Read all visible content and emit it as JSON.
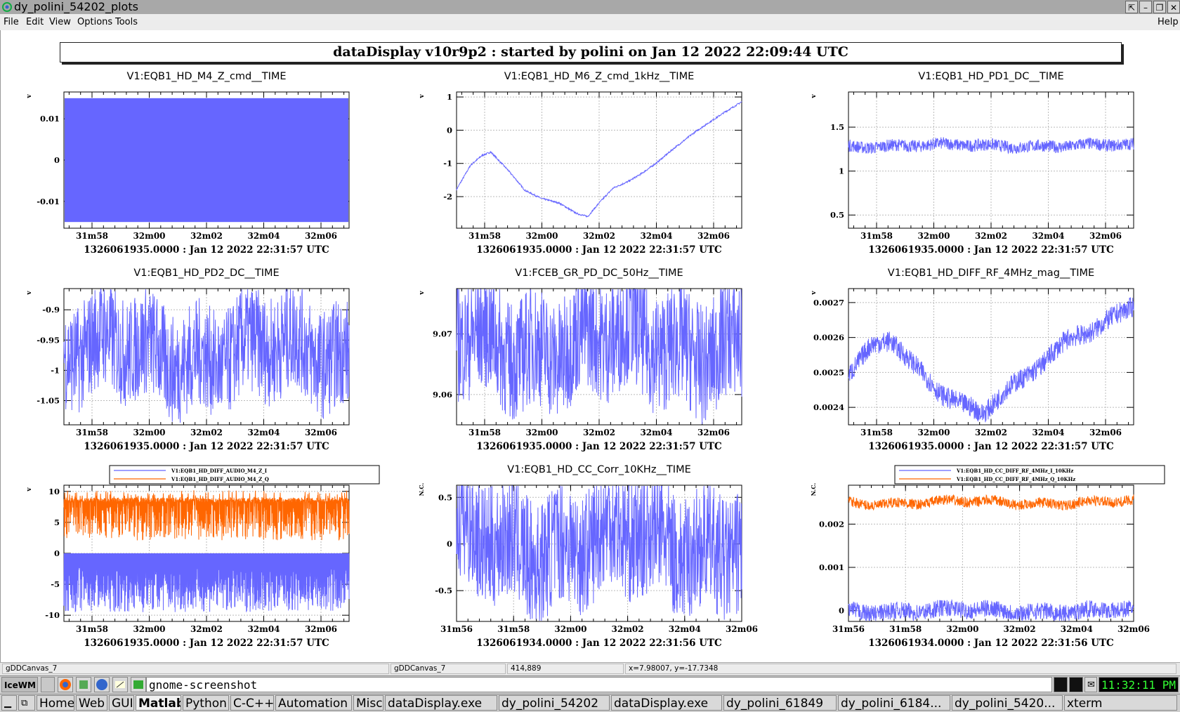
{
  "window": {
    "title": "dy_polini_54202_plots",
    "controls": [
      "⇱",
      "–",
      "❐",
      "✕"
    ]
  },
  "menu": {
    "left": [
      "File",
      "Edit",
      "View",
      "Options",
      "Tools"
    ],
    "right": "Help"
  },
  "banner": "dataDisplay v10r9p2 : started by polini on Jan 12 2022 22:09:44 UTC",
  "panels": [
    {
      "title": "V1:EQB1_HD_M4_Z_cmd__TIME",
      "ylabel": "v",
      "time_label": "1326061935.0000 : Jan 12 2022 22:31:57 UTC"
    },
    {
      "title": "V1:EQB1_HD_M6_Z_cmd_1kHz__TIME",
      "ylabel": "v",
      "time_label": "1326061935.0000 : Jan 12 2022 22:31:57 UTC"
    },
    {
      "title": "V1:EQB1_HD_PD1_DC__TIME",
      "ylabel": "v",
      "time_label": "1326061935.0000 : Jan 12 2022 22:31:57 UTC"
    },
    {
      "title": "V1:EQB1_HD_PD2_DC__TIME",
      "ylabel": "v",
      "time_label": "1326061935.0000 : Jan 12 2022 22:31:57 UTC"
    },
    {
      "title": "V1:FCEB_GR_PD_DC_50Hz__TIME",
      "ylabel": "v",
      "time_label": "1326061935.0000 : Jan 12 2022 22:31:57 UTC"
    },
    {
      "title": "V1:EQB1_HD_DIFF_RF_4MHz_mag__TIME",
      "ylabel": "v",
      "time_label": "1326061935.0000 : Jan 12 2022 22:31:57 UTC"
    },
    {
      "title": "",
      "ylabel": "v",
      "time_label": "1326061935.0000 : Jan 12 2022 22:31:57 UTC",
      "legend": [
        "V1:EQB1_HD_DIFF_AUDIO_M4_Z_I",
        "V1:EQB1_HD_DIFF_AUDIO_M4_Z_Q"
      ]
    },
    {
      "title": "V1:EQB1_HD_CC_Corr_10KHz__TIME",
      "ylabel": "N.C.",
      "time_label": "1326061934.0000 : Jan 12 2022 22:31:56 UTC"
    },
    {
      "title": "",
      "ylabel": "N.C.",
      "time_label": "1326061934.0000 : Jan 12 2022 22:31:56 UTC",
      "legend": [
        "V1:EQB1_HD_CC_DIFF_RF_4MHz_I_10KHz",
        "V1:EQB1_HD_CC_DIFF_RF_4MHz_Q_10KHz"
      ]
    }
  ],
  "chart_data": [
    {
      "type": "line",
      "title": "V1:EQB1_HD_M4_Z_cmd__TIME",
      "ylabel": "v",
      "x_ticks": [
        "31m58",
        "32m00",
        "32m02",
        "32m04",
        "32m06"
      ],
      "y_ticks": [
        -0.01,
        0,
        0.01
      ],
      "ylim": [
        -0.0165,
        0.0165
      ],
      "grid": true,
      "series": [
        {
          "envelope": [
            -0.015,
            0.015
          ]
        }
      ]
    },
    {
      "type": "line",
      "title": "V1:EQB1_HD_M6_Z_cmd_1kHz__TIME",
      "ylabel": "v",
      "x_ticks": [
        "31m58",
        "32m00",
        "32m02",
        "32m04",
        "32m06"
      ],
      "y_ticks": [
        -2,
        -1,
        0,
        1
      ],
      "ylim": [
        -2.95,
        1.15
      ],
      "grid": true,
      "series": [
        {
          "t": [
            0,
            0.05,
            0.09,
            0.12,
            0.18,
            0.24,
            0.3,
            0.36,
            0.42,
            0.46,
            0.5,
            0.55,
            0.6,
            0.65,
            0.7,
            0.76,
            0.82,
            0.88,
            0.94,
            1.0
          ],
          "values": [
            -1.8,
            -1.05,
            -0.75,
            -0.65,
            -1.2,
            -1.8,
            -2.05,
            -2.2,
            -2.5,
            -2.6,
            -2.2,
            -1.75,
            -1.55,
            -1.3,
            -1.0,
            -0.55,
            -0.15,
            0.2,
            0.55,
            0.85
          ]
        }
      ]
    },
    {
      "type": "line",
      "title": "V1:EQB1_HD_PD1_DC__TIME",
      "ylabel": "v",
      "x_ticks": [
        "31m58",
        "32m00",
        "32m02",
        "32m04",
        "32m06"
      ],
      "y_ticks": [
        0.5,
        1,
        1.5
      ],
      "ylim": [
        0.35,
        1.9
      ],
      "grid": true,
      "series": [
        {
          "mean": 1.29,
          "band": [
            1.22,
            1.36
          ]
        }
      ]
    },
    {
      "type": "line",
      "title": "V1:EQB1_HD_PD2_DC__TIME",
      "ylabel": "v",
      "x_ticks": [
        "31m58",
        "32m00",
        "32m02",
        "32m04",
        "32m06"
      ],
      "y_ticks": [
        -1.05,
        -1,
        -0.95,
        -0.9
      ],
      "ylim": [
        -1.09,
        -0.865
      ],
      "grid": true,
      "series": [
        {
          "mean": -0.97,
          "band": [
            -1.07,
            -0.89
          ]
        }
      ]
    },
    {
      "type": "line",
      "title": "V1:FCEB_GR_PD_DC_50Hz__TIME",
      "ylabel": "v",
      "x_ticks": [
        "31m58",
        "32m00",
        "32m02",
        "32m04",
        "32m06"
      ],
      "y_ticks": [
        9.06,
        9.07
      ],
      "ylim": [
        9.055,
        9.0775
      ],
      "grid": true,
      "series": [
        {
          "mean": 9.0685,
          "band": [
            9.056,
            9.076
          ]
        }
      ]
    },
    {
      "type": "line",
      "title": "V1:EQB1_HD_DIFF_RF_4MHz_mag__TIME",
      "ylabel": "v",
      "x_ticks": [
        "31m58",
        "32m00",
        "32m02",
        "32m04",
        "32m06"
      ],
      "y_ticks": [
        0.0024,
        0.0025,
        0.0026,
        0.0027
      ],
      "ylim": [
        0.00235,
        0.00274
      ],
      "grid": true,
      "series": [
        {
          "t": [
            0,
            0.08,
            0.15,
            0.25,
            0.32,
            0.4,
            0.47,
            0.55,
            0.62,
            0.7,
            0.78,
            0.86,
            0.93,
            1.0
          ],
          "values": [
            0.0025,
            0.00258,
            0.0026,
            0.0025,
            0.00244,
            0.0024,
            0.00238,
            0.00245,
            0.00249,
            0.00255,
            0.0026,
            0.00262,
            0.00265,
            0.00269
          ]
        }
      ]
    },
    {
      "type": "line",
      "ylabel": "v",
      "x_ticks": [
        "31m58",
        "32m00",
        "32m02",
        "32m04",
        "32m06"
      ],
      "y_ticks": [
        -10,
        -5,
        0,
        5,
        10
      ],
      "ylim": [
        -11,
        11
      ],
      "grid": true,
      "series": [
        {
          "name": "V1:EQB1_HD_DIFF_AUDIO_M4_Z_I",
          "color": "#6666ff",
          "band": [
            -9.5,
            0
          ]
        },
        {
          "name": "V1:EQB1_HD_DIFF_AUDIO_M4_Z_Q",
          "color": "#ff6600",
          "band": [
            0,
            9
          ]
        }
      ]
    },
    {
      "type": "line",
      "title": "V1:EQB1_HD_CC_Corr_10KHz__TIME",
      "ylabel": "N.C.",
      "x_ticks": [
        "31m56",
        "31m58",
        "32m00",
        "32m02",
        "32m04",
        "32m06"
      ],
      "y_ticks": [
        -0.5,
        0,
        0.5
      ],
      "ylim": [
        -0.83,
        0.63
      ],
      "grid": true,
      "series": [
        {
          "mean": 0.02,
          "band": [
            -0.78,
            0.55
          ]
        }
      ]
    },
    {
      "type": "line",
      "ylabel": "N.C.",
      "x_ticks": [
        "31m56",
        "31m58",
        "32m00",
        "32m02",
        "32m04",
        "32m06"
      ],
      "y_ticks": [
        0,
        0.001,
        0.002
      ],
      "ylim": [
        -0.00025,
        0.0029
      ],
      "grid": true,
      "series": [
        {
          "name": "V1:EQB1_HD_CC_DIFF_RF_4MHz_I_10KHz",
          "color": "#6666ff",
          "mean": 0.0,
          "band": [
            -0.0002,
            0.0002
          ]
        },
        {
          "name": "V1:EQB1_HD_CC_DIFF_RF_4MHz_Q_10KHz",
          "color": "#ff6600",
          "mean": 0.0025,
          "band": [
            0.0023,
            0.0027
          ]
        }
      ]
    }
  ],
  "status": {
    "cell1": "gDDCanvas_7",
    "cell2": "gDDCanvas_7",
    "cell3": "414,889",
    "cell4": "x=7.98007, y=-17.7348"
  },
  "taskbar_top": {
    "command": "gnome-screenshot",
    "clock": "11:32:11 PM",
    "launcher_icons": [
      "firefox-icon",
      "tools-icon",
      "browser-icon",
      "edit-icon",
      "terminal-icon"
    ]
  },
  "taskbar_bottom": {
    "workspaces": [
      "Home",
      "Web",
      "GUI",
      "Matlab",
      "Python",
      "C-C++",
      "Automation",
      "Misc"
    ],
    "active_workspace": "Matlab",
    "tasks": [
      "dataDisplay.exe",
      "dy_polini_54202",
      "dataDisplay.exe",
      "dy_polini_61849",
      "dy_polini_6184...",
      "dy_polini_5420...",
      "xterm"
    ]
  },
  "colors": {
    "trace": "#6666ff",
    "trace2": "#ff6600",
    "grid": "#bbbbbb"
  }
}
